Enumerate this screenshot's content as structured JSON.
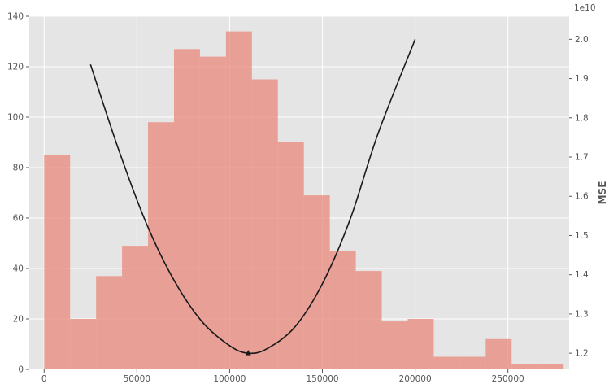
{
  "chart_data": {
    "type": "bar",
    "title": "",
    "xlabel": "",
    "ylabel": "",
    "y2label": "MSE",
    "y2_offset_label": "1e10",
    "xlim": [
      -8000,
      283000
    ],
    "ylim": [
      0,
      140
    ],
    "y2lim": [
      1.1588,
      2.0588
    ],
    "grid": true,
    "x_ticks": [
      0,
      50000,
      100000,
      150000,
      200000,
      250000
    ],
    "y_ticks": [
      0,
      20,
      40,
      60,
      80,
      100,
      120,
      140
    ],
    "y2_ticks": [
      1.2,
      1.3,
      1.4,
      1.5,
      1.6,
      1.7,
      1.8,
      1.9,
      2.0
    ],
    "histogram": {
      "color": "#e8877a",
      "bin_edges": [
        0,
        14000,
        28000,
        42000,
        56000,
        70000,
        84000,
        98000,
        112000,
        126000,
        140000,
        154000,
        168000,
        182000,
        196000,
        210000,
        224000,
        238000,
        252000,
        266000,
        280000
      ],
      "counts": [
        85,
        20,
        37,
        49,
        98,
        127,
        124,
        134,
        115,
        90,
        69,
        47,
        39,
        19,
        20,
        5,
        5,
        12,
        2,
        2
      ]
    },
    "mse_curve": {
      "color": "#1a1a1a",
      "x": [
        25000,
        40000,
        55000,
        70000,
        85000,
        100000,
        110000,
        120000,
        135000,
        150000,
        165000,
        180000,
        200000
      ],
      "y": [
        1.936,
        1.721,
        1.532,
        1.386,
        1.281,
        1.219,
        1.2,
        1.211,
        1.266,
        1.377,
        1.542,
        1.76,
        2.0
      ],
      "minimum": {
        "x": 110000,
        "y": 1.2
      }
    }
  }
}
